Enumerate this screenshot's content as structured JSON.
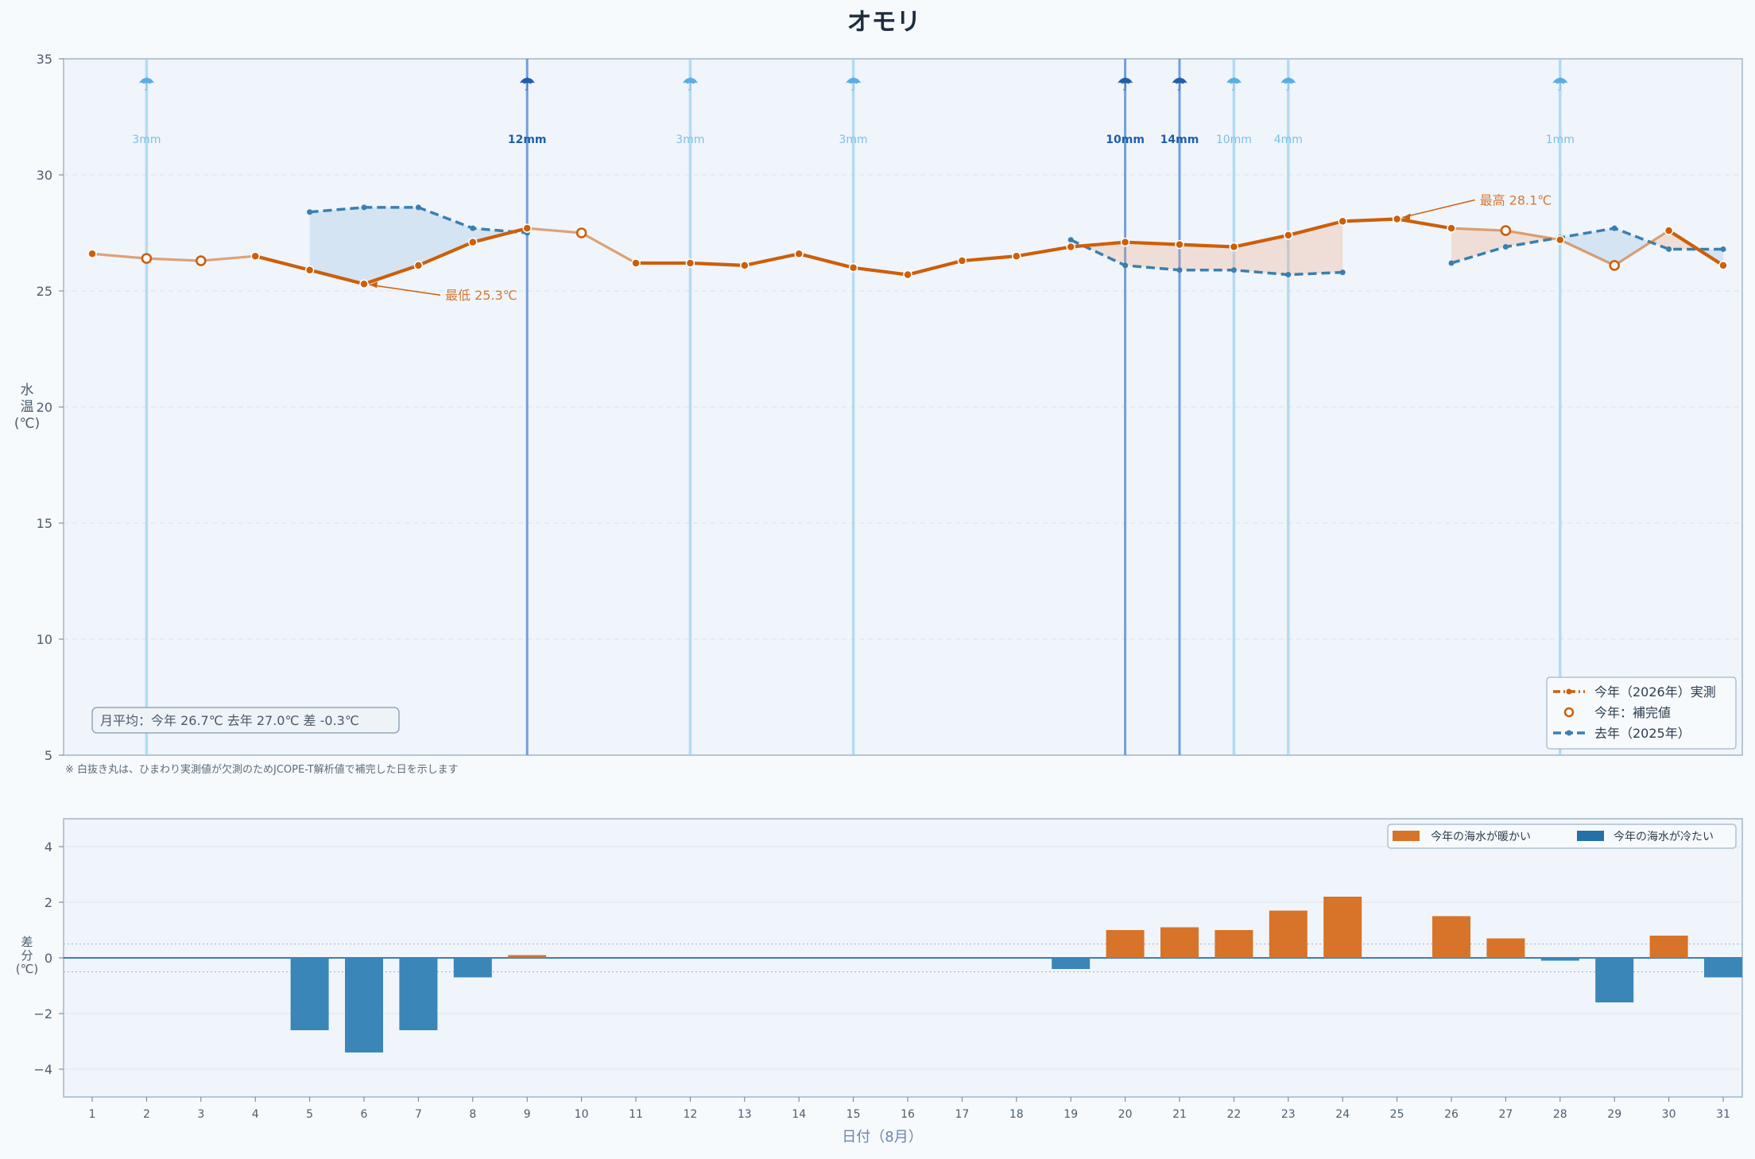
{
  "title": "オモリ",
  "footnote": "※ 白抜き丸は、ひまわり実測値が欠測のためJCOPE-T解析値で補完した日を示します",
  "colors": {
    "this_year": "#cc5f0a",
    "last_year": "#3a7fb0",
    "warm_bar": "#d8732a",
    "cold_bar": "#3a86b8",
    "rain_light": "#9fd3ef",
    "rain_heavy": "#5a92d6"
  },
  "chart_data": [
    {
      "type": "line",
      "ylabel": [
        "水",
        "温",
        "(℃)"
      ],
      "ylim": [
        5,
        35
      ],
      "yticks": [
        5,
        10,
        15,
        20,
        25,
        30,
        35
      ],
      "grid": true,
      "days": [
        1,
        2,
        3,
        4,
        5,
        6,
        7,
        8,
        9,
        10,
        11,
        12,
        13,
        14,
        15,
        16,
        17,
        18,
        19,
        20,
        21,
        22,
        23,
        24,
        25,
        26,
        27,
        28,
        29,
        30,
        31
      ],
      "series": [
        {
          "name": "今年（2026年）実測",
          "values": [
            26.6,
            26.4,
            26.3,
            26.5,
            25.9,
            25.3,
            26.1,
            27.1,
            27.7,
            27.5,
            26.2,
            26.2,
            26.1,
            26.6,
            26.0,
            25.7,
            26.3,
            26.5,
            26.9,
            27.1,
            27.0,
            26.9,
            27.4,
            28.0,
            28.1,
            27.7,
            27.6,
            27.2,
            26.1,
            27.6,
            26.1
          ],
          "interpolated_days": [
            2,
            3,
            10,
            27,
            29
          ]
        },
        {
          "name": "去年（2025年）",
          "values": [
            null,
            null,
            null,
            null,
            28.4,
            28.6,
            28.6,
            27.7,
            27.5,
            null,
            null,
            null,
            null,
            null,
            null,
            null,
            null,
            null,
            27.2,
            26.1,
            25.9,
            25.9,
            25.7,
            25.8,
            null,
            26.2,
            26.9,
            27.3,
            27.7,
            26.8,
            26.8
          ]
        }
      ],
      "interpolated_legend": "今年：補完値",
      "annotations": [
        {
          "label": "最低 25.3℃",
          "day": 6,
          "value": 25.3
        },
        {
          "label": "最高 28.1℃",
          "day": 25,
          "value": 28.1
        }
      ],
      "rain": [
        {
          "day": 2,
          "label": "3mm",
          "heavy": false
        },
        {
          "day": 9,
          "label": "12mm",
          "heavy": true
        },
        {
          "day": 12,
          "label": "3mm",
          "heavy": false
        },
        {
          "day": 15,
          "label": "3mm",
          "heavy": false
        },
        {
          "day": 20,
          "label": "10mm",
          "heavy": true
        },
        {
          "day": 21,
          "label": "14mm",
          "heavy": true
        },
        {
          "day": 22,
          "label": "10mm",
          "heavy": false
        },
        {
          "day": 23,
          "label": "4mm",
          "heavy": false
        },
        {
          "day": 28,
          "label": "1mm",
          "heavy": false
        }
      ],
      "monthly_summary": "月平均：今年 26.7℃  去年 27.0℃  差 -0.3℃",
      "legend_position": "bottom-right"
    },
    {
      "type": "bar",
      "ylabel": [
        "差",
        "分",
        "(℃)"
      ],
      "ylim": [
        -5,
        5
      ],
      "yticks": [
        -4,
        -2,
        0,
        2,
        4
      ],
      "xlabel": "日付（8月）",
      "categories": [
        "1",
        "2",
        "3",
        "4",
        "5",
        "6",
        "7",
        "8",
        "9",
        "10",
        "11",
        "12",
        "13",
        "14",
        "15",
        "16",
        "17",
        "18",
        "19",
        "20",
        "21",
        "22",
        "23",
        "24",
        "25",
        "26",
        "27",
        "28",
        "29",
        "30",
        "31"
      ],
      "values": [
        null,
        null,
        null,
        null,
        -2.6,
        -3.4,
        -2.6,
        -0.7,
        0.1,
        null,
        null,
        null,
        null,
        null,
        null,
        null,
        null,
        null,
        -0.4,
        1.0,
        1.1,
        1.0,
        1.7,
        2.2,
        null,
        1.5,
        0.7,
        -0.1,
        -1.6,
        0.8,
        -0.7
      ],
      "legend": [
        "今年の海水が暖かい",
        "今年の海水が冷たい"
      ],
      "legend_position": "top-right"
    }
  ]
}
